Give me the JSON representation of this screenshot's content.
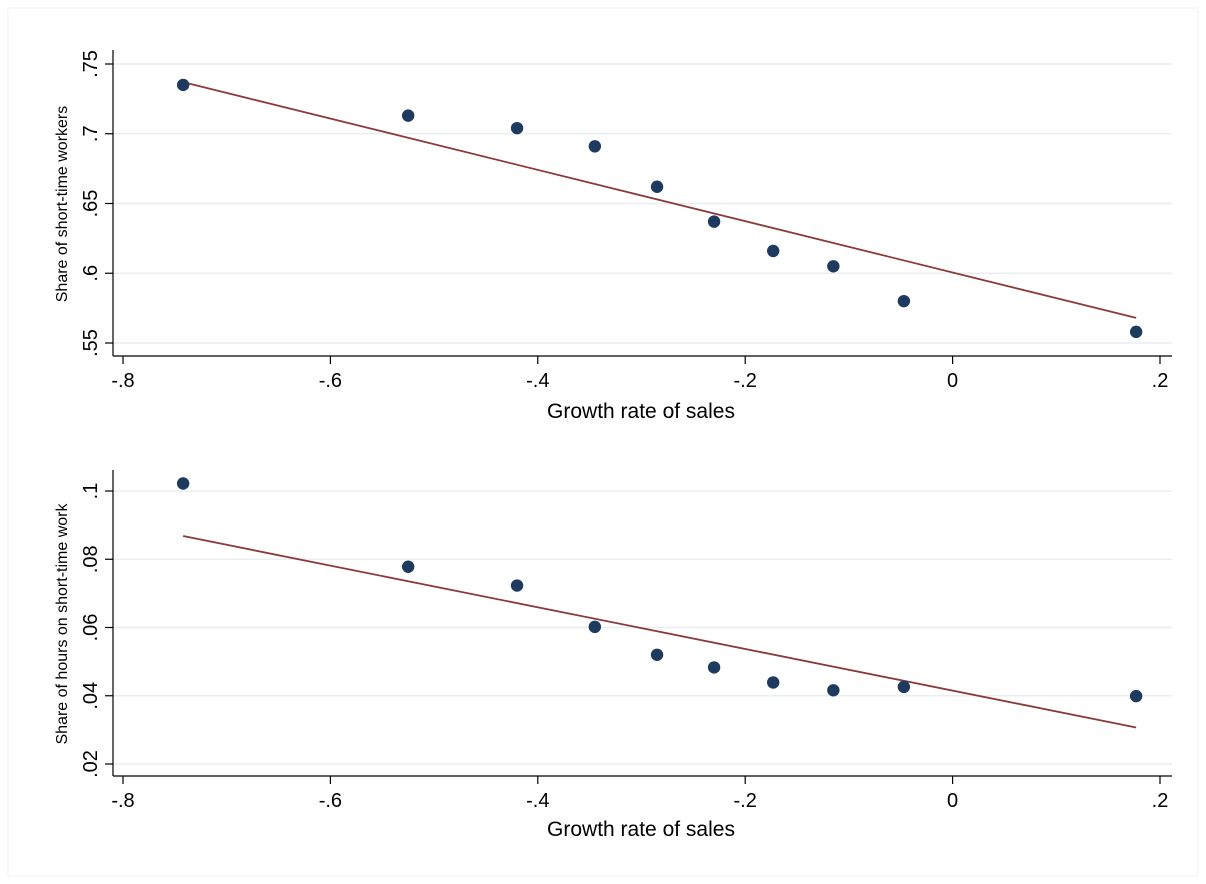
{
  "colors": {
    "background": "#ffffff",
    "marker": "#1f3a5f",
    "fit_line": "#8b3a3a",
    "grid": "#e8eef2",
    "axis": "#000000"
  },
  "chart_data": [
    {
      "type": "scatter",
      "title": "",
      "xlabel": "Growth rate of sales",
      "ylabel": "Share of short-time workers",
      "xlim": [
        -0.8,
        0.2
      ],
      "ylim": [
        0.55,
        0.75
      ],
      "xticks": [
        -0.8,
        -0.6,
        -0.4,
        -0.2,
        0,
        0.2
      ],
      "xtick_labels": [
        "-.8",
        "-.6",
        "-.4",
        "-.2",
        "0",
        ".2"
      ],
      "yticks": [
        0.55,
        0.6,
        0.65,
        0.7,
        0.75
      ],
      "ytick_labels": [
        ".55",
        ".6",
        ".65",
        ".7",
        ".75"
      ],
      "grid": true,
      "points": {
        "x": [
          -0.742,
          -0.525,
          -0.42,
          -0.345,
          -0.285,
          -0.23,
          -0.173,
          -0.115,
          -0.047,
          0.177
        ],
        "y": [
          0.735,
          0.713,
          0.704,
          0.691,
          0.662,
          0.637,
          0.616,
          0.605,
          0.58,
          0.558
        ]
      },
      "fit_line": {
        "x": [
          -0.742,
          0.177
        ],
        "y": [
          0.737,
          0.568
        ]
      }
    },
    {
      "type": "scatter",
      "title": "",
      "xlabel": "Growth rate of sales",
      "ylabel": "Share of hours on short-time work",
      "xlim": [
        -0.8,
        0.2
      ],
      "ylim": [
        0.02,
        0.1
      ],
      "xticks": [
        -0.8,
        -0.6,
        -0.4,
        -0.2,
        0,
        0.2
      ],
      "xtick_labels": [
        "-.8",
        "-.6",
        "-.4",
        "-.2",
        "0",
        ".2"
      ],
      "yticks": [
        0.02,
        0.04,
        0.06,
        0.08,
        0.1
      ],
      "ytick_labels": [
        ".02",
        ".04",
        ".06",
        ".08",
        ".1"
      ],
      "grid": true,
      "points": {
        "x": [
          -0.742,
          -0.525,
          -0.42,
          -0.345,
          -0.285,
          -0.23,
          -0.173,
          -0.115,
          -0.047,
          0.177
        ],
        "y": [
          0.1022,
          0.0778,
          0.0723,
          0.0602,
          0.052,
          0.0483,
          0.0439,
          0.0416,
          0.0426,
          0.0399
        ]
      },
      "fit_line": {
        "x": [
          -0.742,
          0.177
        ],
        "y": [
          0.0868,
          0.0307
        ]
      }
    }
  ]
}
